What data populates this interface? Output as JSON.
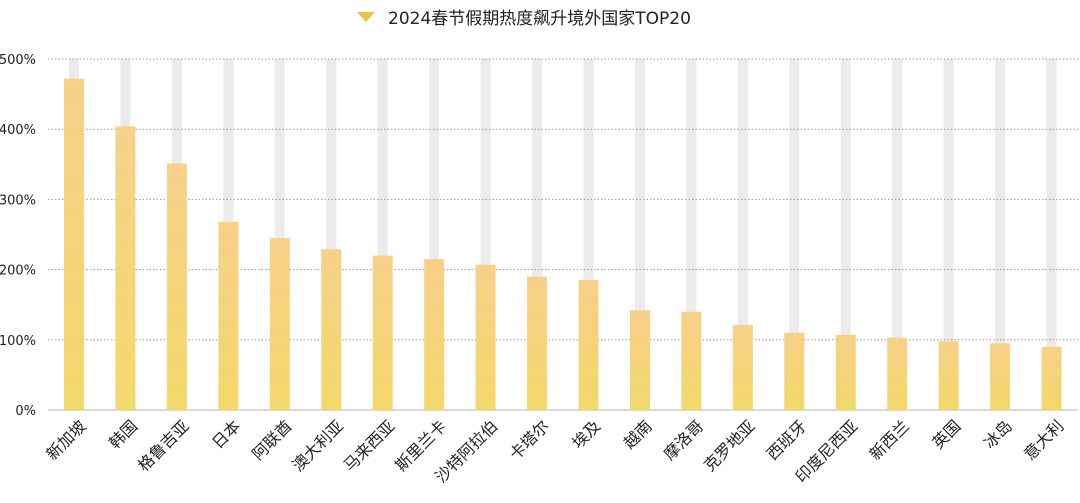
{
  "chart_data": {
    "type": "bar",
    "title": "2024春节假期热度飙升境外国家TOP20",
    "categories": [
      "新加坡",
      "韩国",
      "格鲁吉亚",
      "日本",
      "阿联酋",
      "澳大利亚",
      "马来西亚",
      "斯里兰卡",
      "沙特阿拉伯",
      "卡塔尔",
      "埃及",
      "越南",
      "摩洛哥",
      "克罗地亚",
      "西班牙",
      "印度尼西亚",
      "新西兰",
      "英国",
      "冰岛",
      "意大利"
    ],
    "values": [
      472,
      404,
      351,
      268,
      245,
      229,
      220,
      215,
      207,
      190,
      185,
      142,
      140,
      121,
      110,
      107,
      103,
      98,
      95,
      90
    ],
    "ylim": [
      0,
      500
    ],
    "yticks": [
      "0%",
      "100%",
      "200%",
      "300%",
      "400%",
      "500%"
    ],
    "grid": true,
    "legend": "top-center",
    "colors": {
      "bar_top": "#f7d08a",
      "bar_bottom": "#f3d86a",
      "track": "#ebebeb",
      "legend_marker": "#f0c040",
      "grid": "#9a9a9a"
    }
  }
}
